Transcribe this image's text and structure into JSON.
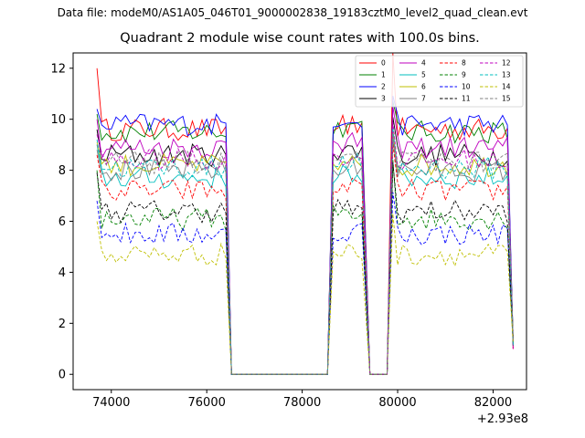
{
  "suptitle": "Data file: modeM0/AS1A05_046T01_9000002838_19183cztM0_level2_quad_clean.evt",
  "chart_data": {
    "type": "line",
    "title": "Quadrant 2 module wise count rates with 100.0s bins.",
    "xlabel": "",
    "ylabel": "",
    "x_offset_label": "+2.93e8",
    "xlim": [
      73200,
      82700
    ],
    "ylim": [
      -0.6,
      12.6
    ],
    "xticks": [
      74000,
      76000,
      78000,
      80000,
      82000
    ],
    "xtick_labels": [
      "74000",
      "76000",
      "78000",
      "80000",
      "82000"
    ],
    "yticks": [
      0,
      2,
      4,
      6,
      8,
      10,
      12
    ],
    "ytick_labels": [
      "0",
      "2",
      "4",
      "6",
      "8",
      "10",
      "12"
    ],
    "legend_position": "top-right",
    "segments": [
      {
        "start": 73700,
        "end": 76400
      },
      {
        "start": 78650,
        "end": 79300
      },
      {
        "start": 79900,
        "end": 82300
      }
    ],
    "gap_value": 0,
    "series": [
      {
        "name": "0",
        "color": "#ff0000",
        "dash": "solid",
        "level": 9.6,
        "first": 12.0
      },
      {
        "name": "1",
        "color": "#008000",
        "dash": "solid",
        "level": 9.5,
        "first": 10.2
      },
      {
        "name": "2",
        "color": "#0000ff",
        "dash": "solid",
        "level": 9.8,
        "first": 10.4
      },
      {
        "name": "3",
        "color": "#000000",
        "dash": "solid",
        "level": 8.6,
        "first": 9.6
      },
      {
        "name": "4",
        "color": "#bf00bf",
        "dash": "solid",
        "level": 8.9,
        "first": 10.0
      },
      {
        "name": "5",
        "color": "#00bfbf",
        "dash": "solid",
        "level": 7.7,
        "first": 9.0
      },
      {
        "name": "6",
        "color": "#bfbf00",
        "dash": "solid",
        "level": 8.2,
        "first": 9.1
      },
      {
        "name": "7",
        "color": "#808080",
        "dash": "solid",
        "level": 8.0,
        "first": 8.8
      },
      {
        "name": "8",
        "color": "#ff0000",
        "dash": "dashed",
        "level": 7.2,
        "first": 8.6
      },
      {
        "name": "9",
        "color": "#008000",
        "dash": "dashed",
        "level": 6.1,
        "first": 8.0
      },
      {
        "name": "10",
        "color": "#0000ff",
        "dash": "dashed",
        "level": 5.5,
        "first": 6.8
      },
      {
        "name": "11",
        "color": "#000000",
        "dash": "dashed",
        "level": 6.4,
        "first": 7.9
      },
      {
        "name": "12",
        "color": "#bf00bf",
        "dash": "dashed",
        "level": 8.4,
        "first": 9.4
      },
      {
        "name": "13",
        "color": "#00bfbf",
        "dash": "dashed",
        "level": 8.1,
        "first": 9.2
      },
      {
        "name": "14",
        "color": "#bfbf00",
        "dash": "dashed",
        "level": 4.7,
        "first": 6.0
      },
      {
        "name": "15",
        "color": "#808080",
        "dash": "dashed",
        "level": 8.3,
        "first": 9.0
      }
    ]
  }
}
